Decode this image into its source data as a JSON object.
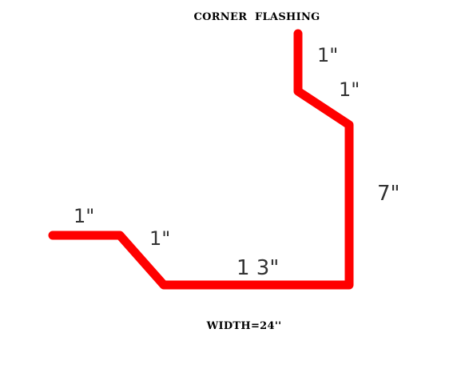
{
  "title": "CORNER  FLASHING",
  "caption": "WIDTH=24''",
  "colors": {
    "flashing": "#ff0000",
    "text": "#000000",
    "dimension_text": "#333333",
    "background": "#ffffff"
  },
  "segments": [
    {
      "id": "top-return",
      "label": "1\""
    },
    {
      "id": "top-hem",
      "label": "1\""
    },
    {
      "id": "vertical-side",
      "label": "7\""
    },
    {
      "id": "bottom-base",
      "label": "1 3\""
    },
    {
      "id": "bottom-hem",
      "label": "1\""
    },
    {
      "id": "bottom-return",
      "label": "1\""
    }
  ]
}
